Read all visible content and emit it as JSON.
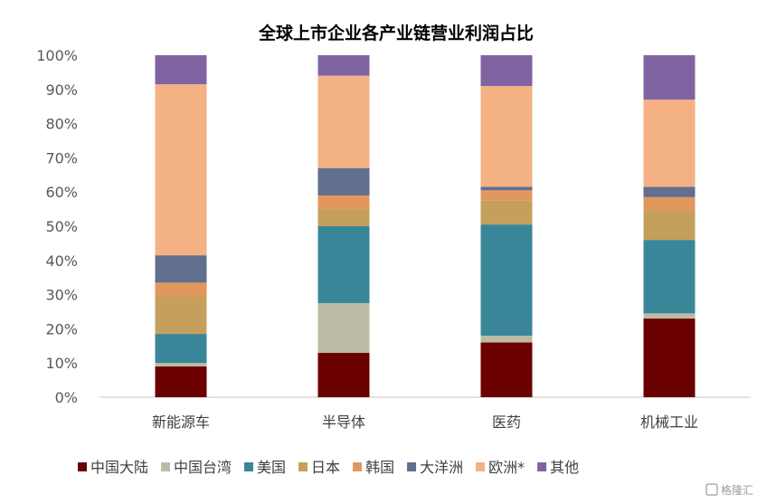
{
  "chart_data": {
    "type": "bar",
    "stacked": true,
    "title": "全球上市企业各产业链营业利润占比",
    "categories": [
      "新能源车",
      "半导体",
      "医药",
      "机械工业"
    ],
    "ylim": [
      0,
      100
    ],
    "y_ticks": [
      "0%",
      "10%",
      "20%",
      "30%",
      "40%",
      "50%",
      "60%",
      "70%",
      "80%",
      "90%",
      "100%"
    ],
    "grid": false,
    "legend_position": "bottom",
    "series": [
      {
        "name": "中国大陆",
        "color": "#6B0000",
        "values": [
          9,
          13,
          16,
          23
        ]
      },
      {
        "name": "中国台湾",
        "color": "#BDBBA4",
        "values": [
          1,
          14.5,
          2,
          1.5
        ]
      },
      {
        "name": "美国",
        "color": "#3A8699",
        "values": [
          8.5,
          22.5,
          32.5,
          21.5
        ]
      },
      {
        "name": "日本",
        "color": "#C4A05C",
        "values": [
          11,
          5,
          7,
          8.5
        ]
      },
      {
        "name": "韩国",
        "color": "#E2975C",
        "values": [
          4,
          4,
          3,
          4
        ]
      },
      {
        "name": "大洋洲",
        "color": "#616E8E",
        "values": [
          8,
          8,
          1,
          3
        ]
      },
      {
        "name": "欧洲*",
        "color": "#F4B183",
        "values": [
          50,
          27,
          29.5,
          25.5
        ]
      },
      {
        "name": "其他",
        "color": "#8064A2",
        "values": [
          8.5,
          6,
          9,
          13
        ]
      }
    ]
  },
  "watermark": "格隆汇"
}
